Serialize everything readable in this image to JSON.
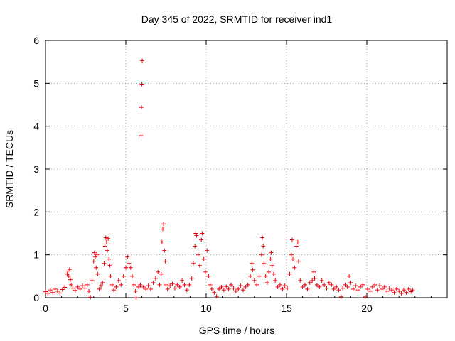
{
  "chart_data": {
    "type": "scatter",
    "title": "Day 345 of 2022, SRMTID for receiver ind1",
    "xlabel": "GPS time / hours",
    "ylabel": "SRMTID / TECUs",
    "xlim": [
      0,
      25
    ],
    "ylim": [
      0,
      6
    ],
    "xticks": [
      0,
      5,
      10,
      15,
      20
    ],
    "yticks": [
      0,
      1,
      2,
      3,
      4,
      5,
      6
    ],
    "grid": true,
    "marker": "+",
    "series": [
      {
        "name": "SRMTID",
        "color": "#e8000b",
        "points": [
          [
            0.0,
            0.14
          ],
          [
            0.15,
            0.1
          ],
          [
            0.3,
            0.18
          ],
          [
            0.45,
            0.12
          ],
          [
            0.6,
            0.2
          ],
          [
            0.75,
            0.15
          ],
          [
            0.9,
            0.11
          ],
          [
            1.05,
            0.19
          ],
          [
            1.2,
            0.24
          ],
          [
            1.35,
            0.55
          ],
          [
            1.4,
            0.62
          ],
          [
            1.45,
            0.5
          ],
          [
            1.5,
            0.66
          ],
          [
            1.55,
            0.42
          ],
          [
            1.6,
            0.3
          ],
          [
            1.7,
            0.22
          ],
          [
            1.85,
            0.17
          ],
          [
            2.0,
            0.25
          ],
          [
            2.15,
            0.2
          ],
          [
            2.3,
            0.28
          ],
          [
            2.45,
            0.22
          ],
          [
            2.6,
            0.3
          ],
          [
            2.7,
            0.15
          ],
          [
            2.8,
            0.01
          ],
          [
            2.9,
            0.4
          ],
          [
            3.0,
            0.85
          ],
          [
            3.05,
            1.05
          ],
          [
            3.1,
            0.95
          ],
          [
            3.15,
            0.7
          ],
          [
            3.2,
            1.0
          ],
          [
            3.25,
            0.55
          ],
          [
            3.35,
            0.2
          ],
          [
            3.45,
            0.28
          ],
          [
            3.55,
            0.35
          ],
          [
            3.65,
            0.8
          ],
          [
            3.7,
            1.2
          ],
          [
            3.75,
            1.4
          ],
          [
            3.8,
            1.3
          ],
          [
            3.85,
            1.1
          ],
          [
            3.9,
            1.38
          ],
          [
            3.95,
            0.9
          ],
          [
            4.0,
            0.75
          ],
          [
            4.05,
            0.5
          ],
          [
            4.15,
            0.3
          ],
          [
            4.25,
            0.18
          ],
          [
            4.4,
            0.25
          ],
          [
            4.55,
            0.4
          ],
          [
            4.7,
            0.3
          ],
          [
            4.85,
            0.5
          ],
          [
            5.0,
            0.7
          ],
          [
            5.1,
            0.95
          ],
          [
            5.2,
            0.8
          ],
          [
            5.3,
            0.7
          ],
          [
            5.4,
            0.5
          ],
          [
            5.5,
            0.3
          ],
          [
            5.6,
            0.15
          ],
          [
            5.65,
            0.0
          ],
          [
            5.8,
            0.25
          ],
          [
            5.9,
            0.3
          ],
          [
            5.95,
            3.78
          ],
          [
            5.97,
            4.44
          ],
          [
            6.0,
            4.98
          ],
          [
            6.02,
            5.53
          ],
          [
            6.1,
            0.25
          ],
          [
            6.25,
            0.2
          ],
          [
            6.4,
            0.28
          ],
          [
            6.55,
            0.2
          ],
          [
            6.7,
            0.35
          ],
          [
            6.85,
            0.45
          ],
          [
            7.0,
            0.6
          ],
          [
            7.1,
            0.3
          ],
          [
            7.2,
            0.55
          ],
          [
            7.25,
            1.3
          ],
          [
            7.3,
            1.6
          ],
          [
            7.35,
            1.72
          ],
          [
            7.4,
            1.1
          ],
          [
            7.45,
            0.85
          ],
          [
            7.5,
            0.3
          ],
          [
            7.6,
            0.2
          ],
          [
            7.75,
            0.28
          ],
          [
            7.9,
            0.32
          ],
          [
            8.05,
            0.22
          ],
          [
            8.2,
            0.3
          ],
          [
            8.35,
            0.25
          ],
          [
            8.5,
            0.4
          ],
          [
            8.65,
            0.3
          ],
          [
            8.8,
            0.18
          ],
          [
            8.95,
            0.3
          ],
          [
            9.1,
            0.45
          ],
          [
            9.2,
            0.8
          ],
          [
            9.3,
            1.2
          ],
          [
            9.35,
            1.5
          ],
          [
            9.4,
            1.45
          ],
          [
            9.5,
            1.0
          ],
          [
            9.6,
            0.75
          ],
          [
            9.7,
            1.35
          ],
          [
            9.75,
            1.5
          ],
          [
            9.85,
            0.9
          ],
          [
            9.95,
            0.6
          ],
          [
            10.05,
            1.1
          ],
          [
            10.15,
            0.5
          ],
          [
            10.25,
            0.3
          ],
          [
            10.35,
            0.2
          ],
          [
            10.5,
            0.12
          ],
          [
            10.65,
            0.03
          ],
          [
            10.8,
            0.2
          ],
          [
            10.95,
            0.25
          ],
          [
            11.1,
            0.18
          ],
          [
            11.25,
            0.26
          ],
          [
            11.4,
            0.2
          ],
          [
            11.55,
            0.3
          ],
          [
            11.7,
            0.22
          ],
          [
            11.85,
            0.15
          ],
          [
            12.0,
            0.2
          ],
          [
            12.15,
            0.28
          ],
          [
            12.3,
            0.18
          ],
          [
            12.45,
            0.25
          ],
          [
            12.6,
            0.3
          ],
          [
            12.75,
            0.5
          ],
          [
            12.85,
            0.8
          ],
          [
            12.9,
            0.65
          ],
          [
            13.0,
            0.4
          ],
          [
            13.15,
            0.3
          ],
          [
            13.3,
            0.5
          ],
          [
            13.45,
            1.0
          ],
          [
            13.5,
            1.4
          ],
          [
            13.55,
            1.2
          ],
          [
            13.6,
            0.8
          ],
          [
            13.7,
            0.5
          ],
          [
            13.8,
            0.35
          ],
          [
            13.9,
            0.6
          ],
          [
            14.0,
            0.9
          ],
          [
            14.05,
            1.05
          ],
          [
            14.1,
            0.75
          ],
          [
            14.2,
            0.55
          ],
          [
            14.3,
            0.4
          ],
          [
            14.45,
            0.25
          ],
          [
            14.6,
            0.3
          ],
          [
            14.75,
            0.2
          ],
          [
            14.9,
            0.28
          ],
          [
            15.05,
            0.22
          ],
          [
            15.2,
            0.55
          ],
          [
            15.3,
            1.0
          ],
          [
            15.35,
            1.35
          ],
          [
            15.4,
            0.9
          ],
          [
            15.5,
            0.7
          ],
          [
            15.6,
            1.2
          ],
          [
            15.7,
            1.3
          ],
          [
            15.75,
            0.85
          ],
          [
            15.85,
            0.4
          ],
          [
            16.0,
            0.25
          ],
          [
            16.15,
            0.3
          ],
          [
            16.3,
            0.2
          ],
          [
            16.45,
            0.35
          ],
          [
            16.6,
            0.4
          ],
          [
            16.7,
            0.6
          ],
          [
            16.75,
            0.45
          ],
          [
            16.9,
            0.3
          ],
          [
            17.05,
            0.25
          ],
          [
            17.2,
            0.4
          ],
          [
            17.35,
            0.3
          ],
          [
            17.5,
            0.22
          ],
          [
            17.65,
            0.35
          ],
          [
            17.8,
            0.3
          ],
          [
            17.95,
            0.2
          ],
          [
            18.1,
            0.25
          ],
          [
            18.25,
            0.18
          ],
          [
            18.4,
            0.02
          ],
          [
            18.5,
            0.22
          ],
          [
            18.65,
            0.3
          ],
          [
            18.8,
            0.25
          ],
          [
            18.9,
            0.5
          ],
          [
            19.0,
            0.35
          ],
          [
            19.15,
            0.2
          ],
          [
            19.3,
            0.28
          ],
          [
            19.45,
            0.18
          ],
          [
            19.6,
            0.25
          ],
          [
            19.75,
            0.3
          ],
          [
            19.9,
            0.02
          ],
          [
            20.05,
            0.2
          ],
          [
            20.2,
            0.15
          ],
          [
            20.35,
            0.25
          ],
          [
            20.5,
            0.3
          ],
          [
            20.65,
            0.18
          ],
          [
            20.8,
            0.28
          ],
          [
            20.95,
            0.2
          ],
          [
            21.1,
            0.25
          ],
          [
            21.25,
            0.15
          ],
          [
            21.4,
            0.22
          ],
          [
            21.55,
            0.18
          ],
          [
            21.7,
            0.12
          ],
          [
            21.85,
            0.2
          ],
          [
            22.0,
            0.15
          ],
          [
            22.15,
            0.1
          ],
          [
            22.3,
            0.18
          ],
          [
            22.45,
            0.12
          ],
          [
            22.6,
            0.2
          ],
          [
            22.75,
            0.14
          ],
          [
            22.85,
            0.18
          ]
        ]
      }
    ]
  }
}
